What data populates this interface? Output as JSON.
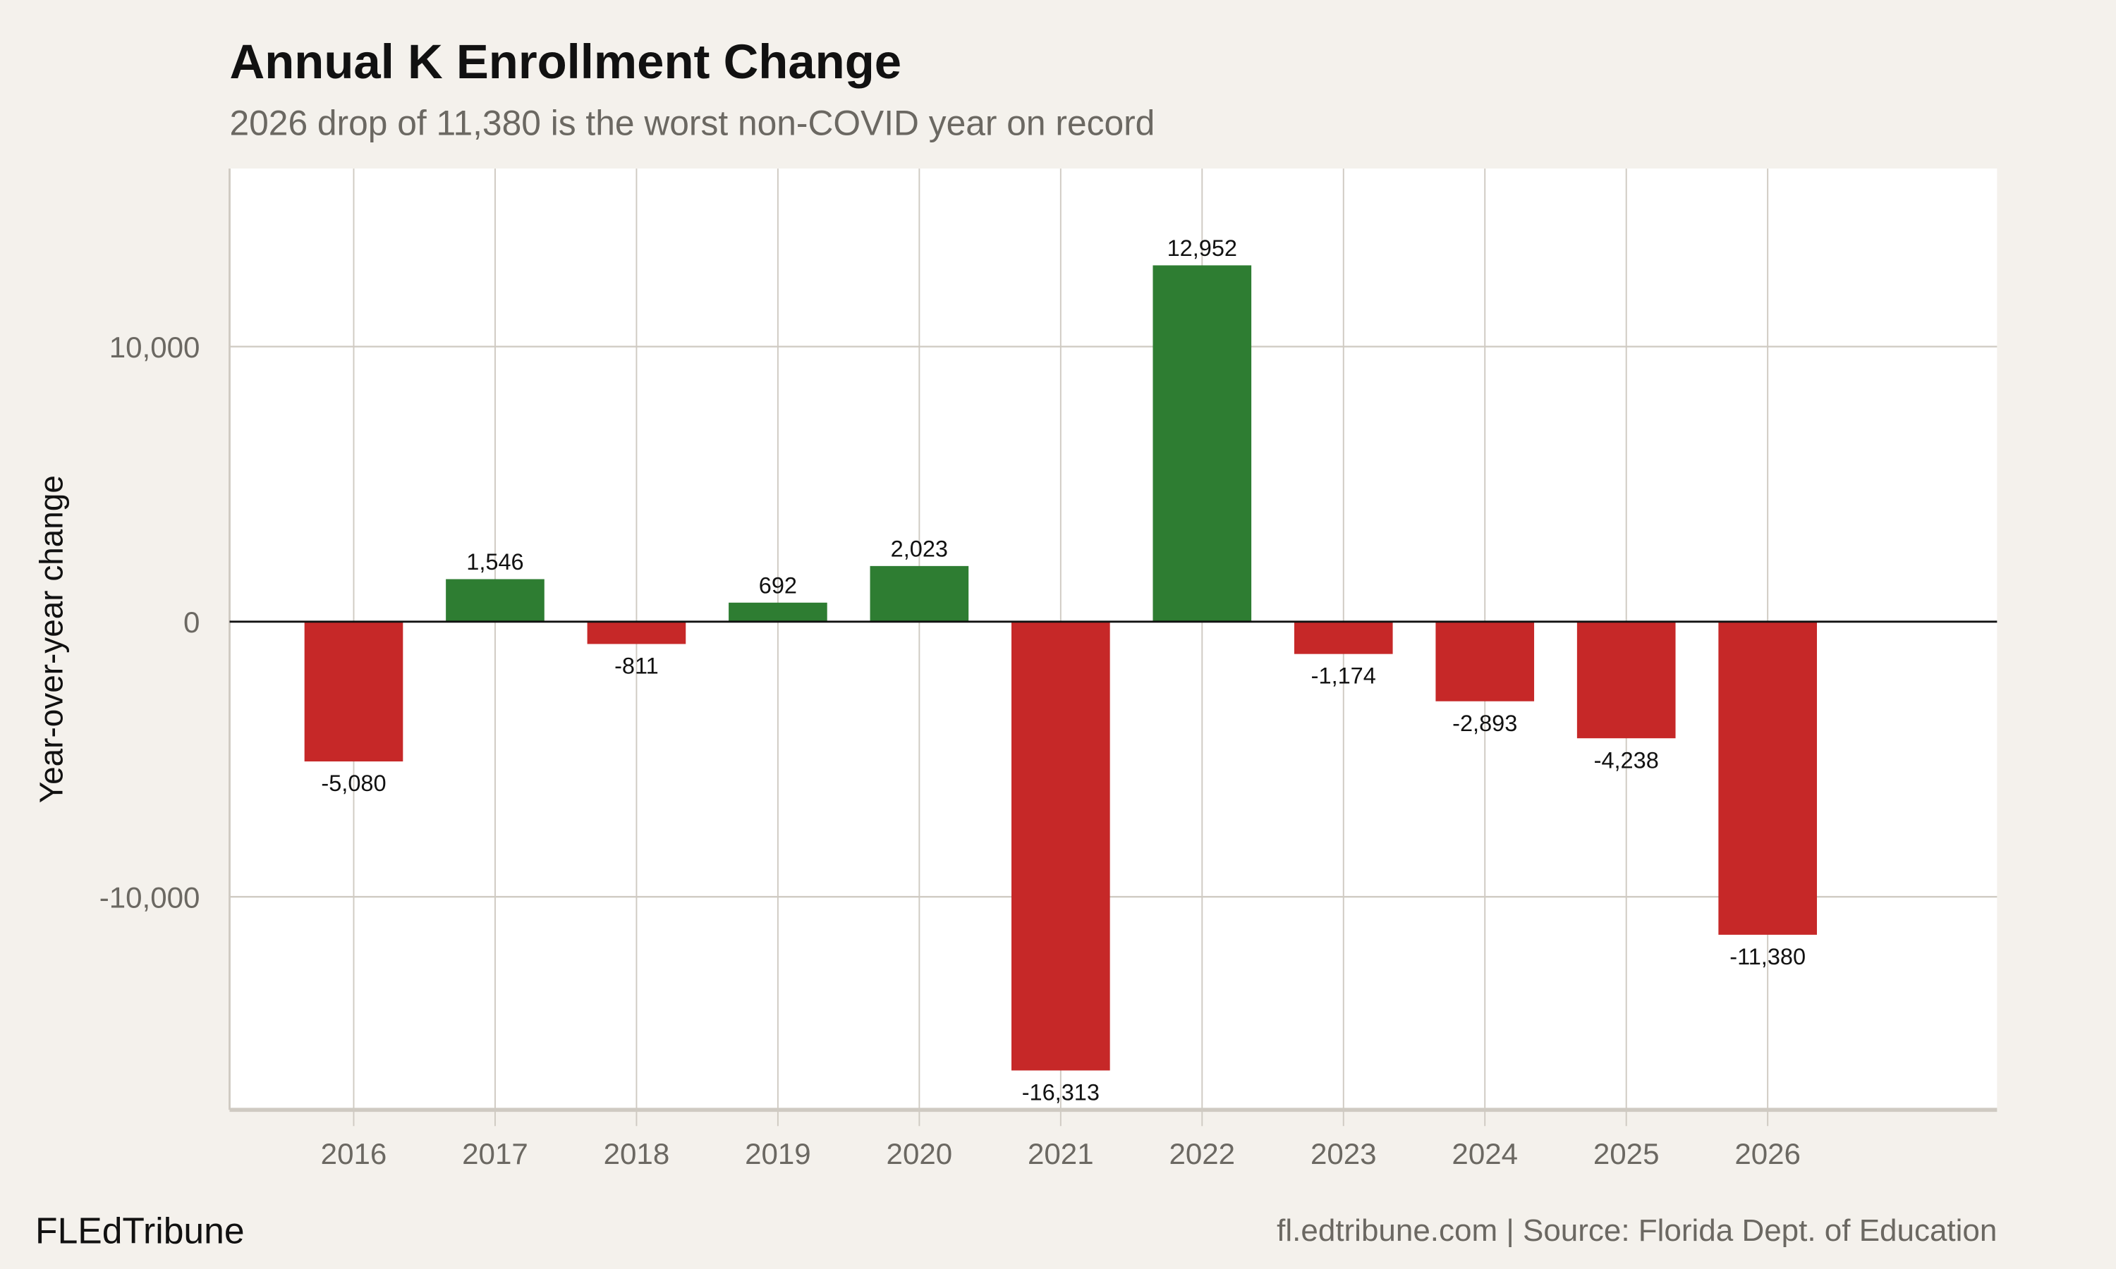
{
  "chart_data": {
    "type": "bar",
    "title": "Annual K Enrollment Change",
    "subtitle": "2026 drop of 11,380 is the worst non-COVID year on record",
    "xlabel": "",
    "ylabel": "Year-over-year change",
    "categories": [
      "2016",
      "2017",
      "2018",
      "2019",
      "2020",
      "2021",
      "2022",
      "2023",
      "2024",
      "2025",
      "2026"
    ],
    "values": [
      -5080,
      1546,
      -811,
      692,
      2023,
      -16313,
      12952,
      -1174,
      -2893,
      -4238,
      -11380
    ],
    "data_labels": [
      "-5,080",
      "1,546",
      "-811",
      "692",
      "2,023",
      "-16,313",
      "12,952",
      "-1,174",
      "-2,893",
      "-4,238",
      "-11,380"
    ],
    "ylim": [
      -17745,
      16470
    ],
    "yticks": [
      -10000,
      0,
      10000
    ],
    "ytick_labels": [
      "-10,000",
      "0",
      "10,000"
    ],
    "grid": true,
    "colors": {
      "positive": "#2e7d32",
      "negative": "#c62828",
      "background": "#f4f1ec",
      "panel": "#ffffff",
      "grid": "#cfcac2"
    }
  },
  "footer": {
    "brand": "FLEdTribune",
    "source": "fl.edtribune.com | Source: Florida Dept. of Education"
  }
}
